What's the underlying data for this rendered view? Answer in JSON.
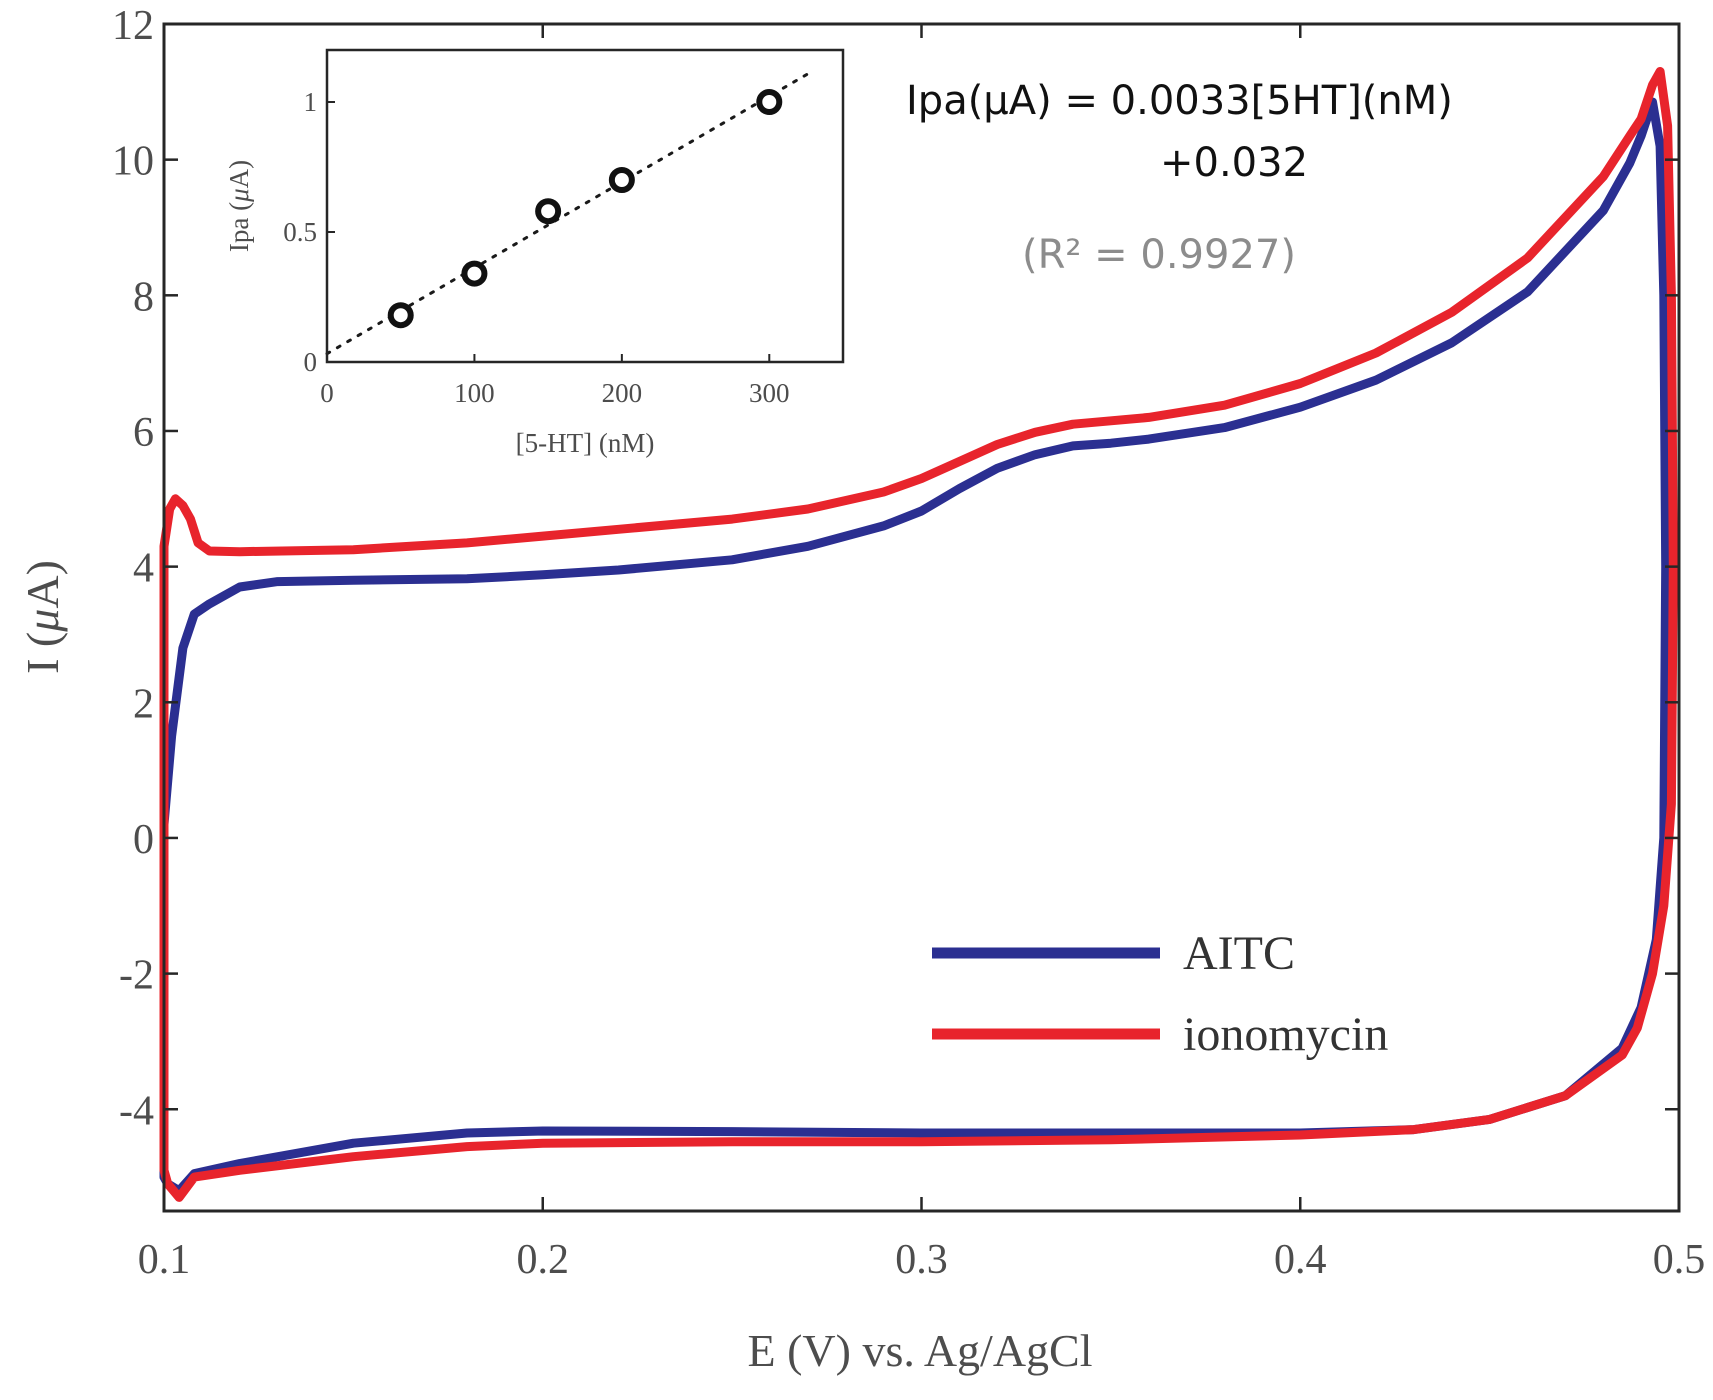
{
  "chart_data": [
    {
      "id": "main",
      "type": "line",
      "title": "",
      "xlabel": "E (V) vs. Ag/AgCl",
      "ylabel": "I (μA)",
      "ylabel_parts": [
        "I (",
        "μ",
        "A)"
      ],
      "xlim": [
        0.1,
        0.5
      ],
      "ylim": [
        -5.5,
        12
      ],
      "xticks": [
        0.1,
        0.2,
        0.3,
        0.4,
        0.5
      ],
      "xtick_labels": [
        "0.1",
        "0.2",
        "0.3",
        "0.4",
        "0.5"
      ],
      "yticks": [
        -4,
        -2,
        0,
        2,
        4,
        6,
        8,
        10,
        12
      ],
      "ytick_labels": [
        "-4",
        "-2",
        "0",
        "2",
        "4",
        "6",
        "8",
        "10",
        "12"
      ],
      "grid": false,
      "legend_position": "bottom-right",
      "series": [
        {
          "name": "AITC",
          "color": "#2b2f91",
          "points": [
            [
              0.1,
              0.2
            ],
            [
              0.102,
              1.5
            ],
            [
              0.105,
              2.8
            ],
            [
              0.108,
              3.3
            ],
            [
              0.112,
              3.45
            ],
            [
              0.12,
              3.7
            ],
            [
              0.13,
              3.78
            ],
            [
              0.15,
              3.8
            ],
            [
              0.18,
              3.82
            ],
            [
              0.2,
              3.88
            ],
            [
              0.22,
              3.95
            ],
            [
              0.25,
              4.1
            ],
            [
              0.27,
              4.3
            ],
            [
              0.29,
              4.6
            ],
            [
              0.3,
              4.82
            ],
            [
              0.31,
              5.15
            ],
            [
              0.32,
              5.45
            ],
            [
              0.33,
              5.65
            ],
            [
              0.34,
              5.78
            ],
            [
              0.35,
              5.82
            ],
            [
              0.36,
              5.88
            ],
            [
              0.38,
              6.05
            ],
            [
              0.4,
              6.35
            ],
            [
              0.42,
              6.75
            ],
            [
              0.44,
              7.3
            ],
            [
              0.46,
              8.05
            ],
            [
              0.48,
              9.25
            ],
            [
              0.487,
              9.95
            ],
            [
              0.49,
              10.35
            ],
            [
              0.493,
              10.85
            ],
            [
              0.495,
              10.2
            ],
            [
              0.496,
              8.0
            ],
            [
              0.4965,
              4.0
            ],
            [
              0.496,
              0.0
            ],
            [
              0.494,
              -1.5
            ],
            [
              0.49,
              -2.5
            ],
            [
              0.485,
              -3.1
            ],
            [
              0.47,
              -3.8
            ],
            [
              0.45,
              -4.15
            ],
            [
              0.43,
              -4.3
            ],
            [
              0.4,
              -4.35
            ],
            [
              0.35,
              -4.35
            ],
            [
              0.3,
              -4.35
            ],
            [
              0.25,
              -4.33
            ],
            [
              0.2,
              -4.32
            ],
            [
              0.18,
              -4.35
            ],
            [
              0.15,
              -4.5
            ],
            [
              0.12,
              -4.8
            ],
            [
              0.108,
              -4.95
            ],
            [
              0.104,
              -5.2
            ],
            [
              0.101,
              -5.1
            ],
            [
              0.1,
              -5.0
            ]
          ]
        },
        {
          "name": "ionomycin",
          "color": "#e8242c",
          "points": [
            [
              0.1,
              4.3
            ],
            [
              0.1015,
              4.85
            ],
            [
              0.103,
              5.0
            ],
            [
              0.105,
              4.9
            ],
            [
              0.107,
              4.7
            ],
            [
              0.109,
              4.35
            ],
            [
              0.112,
              4.23
            ],
            [
              0.12,
              4.22
            ],
            [
              0.15,
              4.25
            ],
            [
              0.18,
              4.35
            ],
            [
              0.2,
              4.45
            ],
            [
              0.22,
              4.55
            ],
            [
              0.25,
              4.7
            ],
            [
              0.27,
              4.85
            ],
            [
              0.29,
              5.1
            ],
            [
              0.3,
              5.3
            ],
            [
              0.31,
              5.55
            ],
            [
              0.32,
              5.8
            ],
            [
              0.33,
              5.98
            ],
            [
              0.34,
              6.1
            ],
            [
              0.35,
              6.15
            ],
            [
              0.36,
              6.2
            ],
            [
              0.38,
              6.38
            ],
            [
              0.4,
              6.7
            ],
            [
              0.42,
              7.15
            ],
            [
              0.44,
              7.75
            ],
            [
              0.46,
              8.55
            ],
            [
              0.48,
              9.75
            ],
            [
              0.487,
              10.35
            ],
            [
              0.49,
              10.6
            ],
            [
              0.493,
              11.1
            ],
            [
              0.495,
              11.3
            ],
            [
              0.497,
              10.5
            ],
            [
              0.498,
              8.0
            ],
            [
              0.4985,
              4.0
            ],
            [
              0.498,
              0.5
            ],
            [
              0.496,
              -1.0
            ],
            [
              0.493,
              -2.0
            ],
            [
              0.489,
              -2.8
            ],
            [
              0.485,
              -3.2
            ],
            [
              0.47,
              -3.8
            ],
            [
              0.45,
              -4.15
            ],
            [
              0.43,
              -4.3
            ],
            [
              0.4,
              -4.38
            ],
            [
              0.35,
              -4.45
            ],
            [
              0.3,
              -4.48
            ],
            [
              0.25,
              -4.48
            ],
            [
              0.2,
              -4.5
            ],
            [
              0.18,
              -4.55
            ],
            [
              0.15,
              -4.7
            ],
            [
              0.12,
              -4.9
            ],
            [
              0.108,
              -5.0
            ],
            [
              0.104,
              -5.3
            ],
            [
              0.101,
              -5.1
            ],
            [
              0.1,
              -4.9
            ]
          ]
        }
      ]
    },
    {
      "id": "inset",
      "type": "scatter",
      "title": "",
      "xlabel": "[5-HT] (nM)",
      "ylabel": "Ipa (μA)",
      "ylabel_parts": [
        "Ipa (",
        "μ",
        "A)"
      ],
      "xlim": [
        0,
        350
      ],
      "ylim": [
        0,
        1.2
      ],
      "xticks": [
        0,
        100,
        200,
        300
      ],
      "xtick_labels": [
        "0",
        "100",
        "200",
        "300"
      ],
      "yticks": [
        0,
        0.5,
        1
      ],
      "ytick_labels": [
        "0",
        "0.5",
        "1"
      ],
      "grid": false,
      "points": [
        {
          "x": 50,
          "y": 0.18
        },
        {
          "x": 100,
          "y": 0.34
        },
        {
          "x": 150,
          "y": 0.58
        },
        {
          "x": 200,
          "y": 0.7
        },
        {
          "x": 300,
          "y": 1.0
        }
      ],
      "fit_line": {
        "slope": 0.0033,
        "intercept": 0.032,
        "style": "dotted"
      },
      "annotations": {
        "equation_line1": "Ipa(μA) = 0.0033[5HT](nM)",
        "equation_line2": "+0.032",
        "r_squared": "(R² = 0.9927)"
      }
    }
  ]
}
